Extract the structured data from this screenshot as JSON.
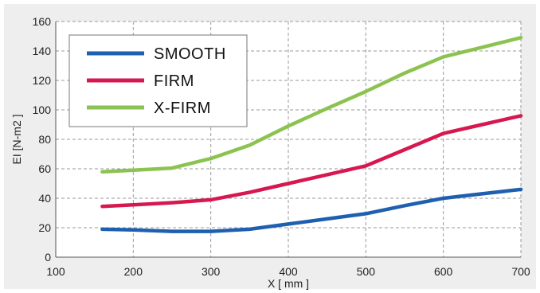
{
  "chart_data": {
    "type": "line",
    "title": "",
    "xlabel": "X [ mm ]",
    "ylabel": "EI [N-m2 ]",
    "xlim": [
      100,
      700
    ],
    "ylim": [
      0,
      160
    ],
    "xticks": [
      100,
      200,
      300,
      400,
      500,
      600,
      700
    ],
    "yticks": [
      0,
      20,
      40,
      60,
      80,
      100,
      120,
      140,
      160
    ],
    "grid": true,
    "legend_position": "top-left",
    "series": [
      {
        "name": "SMOOTH",
        "color": "#1f5fb0",
        "x": [
          160,
          200,
          250,
          300,
          350,
          400,
          450,
          500,
          550,
          600,
          650,
          700
        ],
        "y": [
          19,
          18.5,
          17.5,
          17.5,
          19,
          22.5,
          26,
          29.5,
          35,
          40,
          43,
          46
        ]
      },
      {
        "name": "FIRM",
        "color": "#d6184f",
        "x": [
          160,
          200,
          250,
          300,
          350,
          400,
          450,
          500,
          550,
          600,
          650,
          700
        ],
        "y": [
          34.5,
          35.5,
          37,
          39,
          44,
          50,
          56,
          62,
          73,
          84,
          90,
          96
        ]
      },
      {
        "name": "X-FIRM",
        "color": "#8cc350",
        "x": [
          160,
          200,
          250,
          300,
          350,
          400,
          450,
          500,
          550,
          600,
          650,
          700
        ],
        "y": [
          58,
          59,
          60.5,
          67,
          76,
          89,
          101,
          112.5,
          125,
          136,
          142.5,
          149
        ]
      }
    ]
  }
}
